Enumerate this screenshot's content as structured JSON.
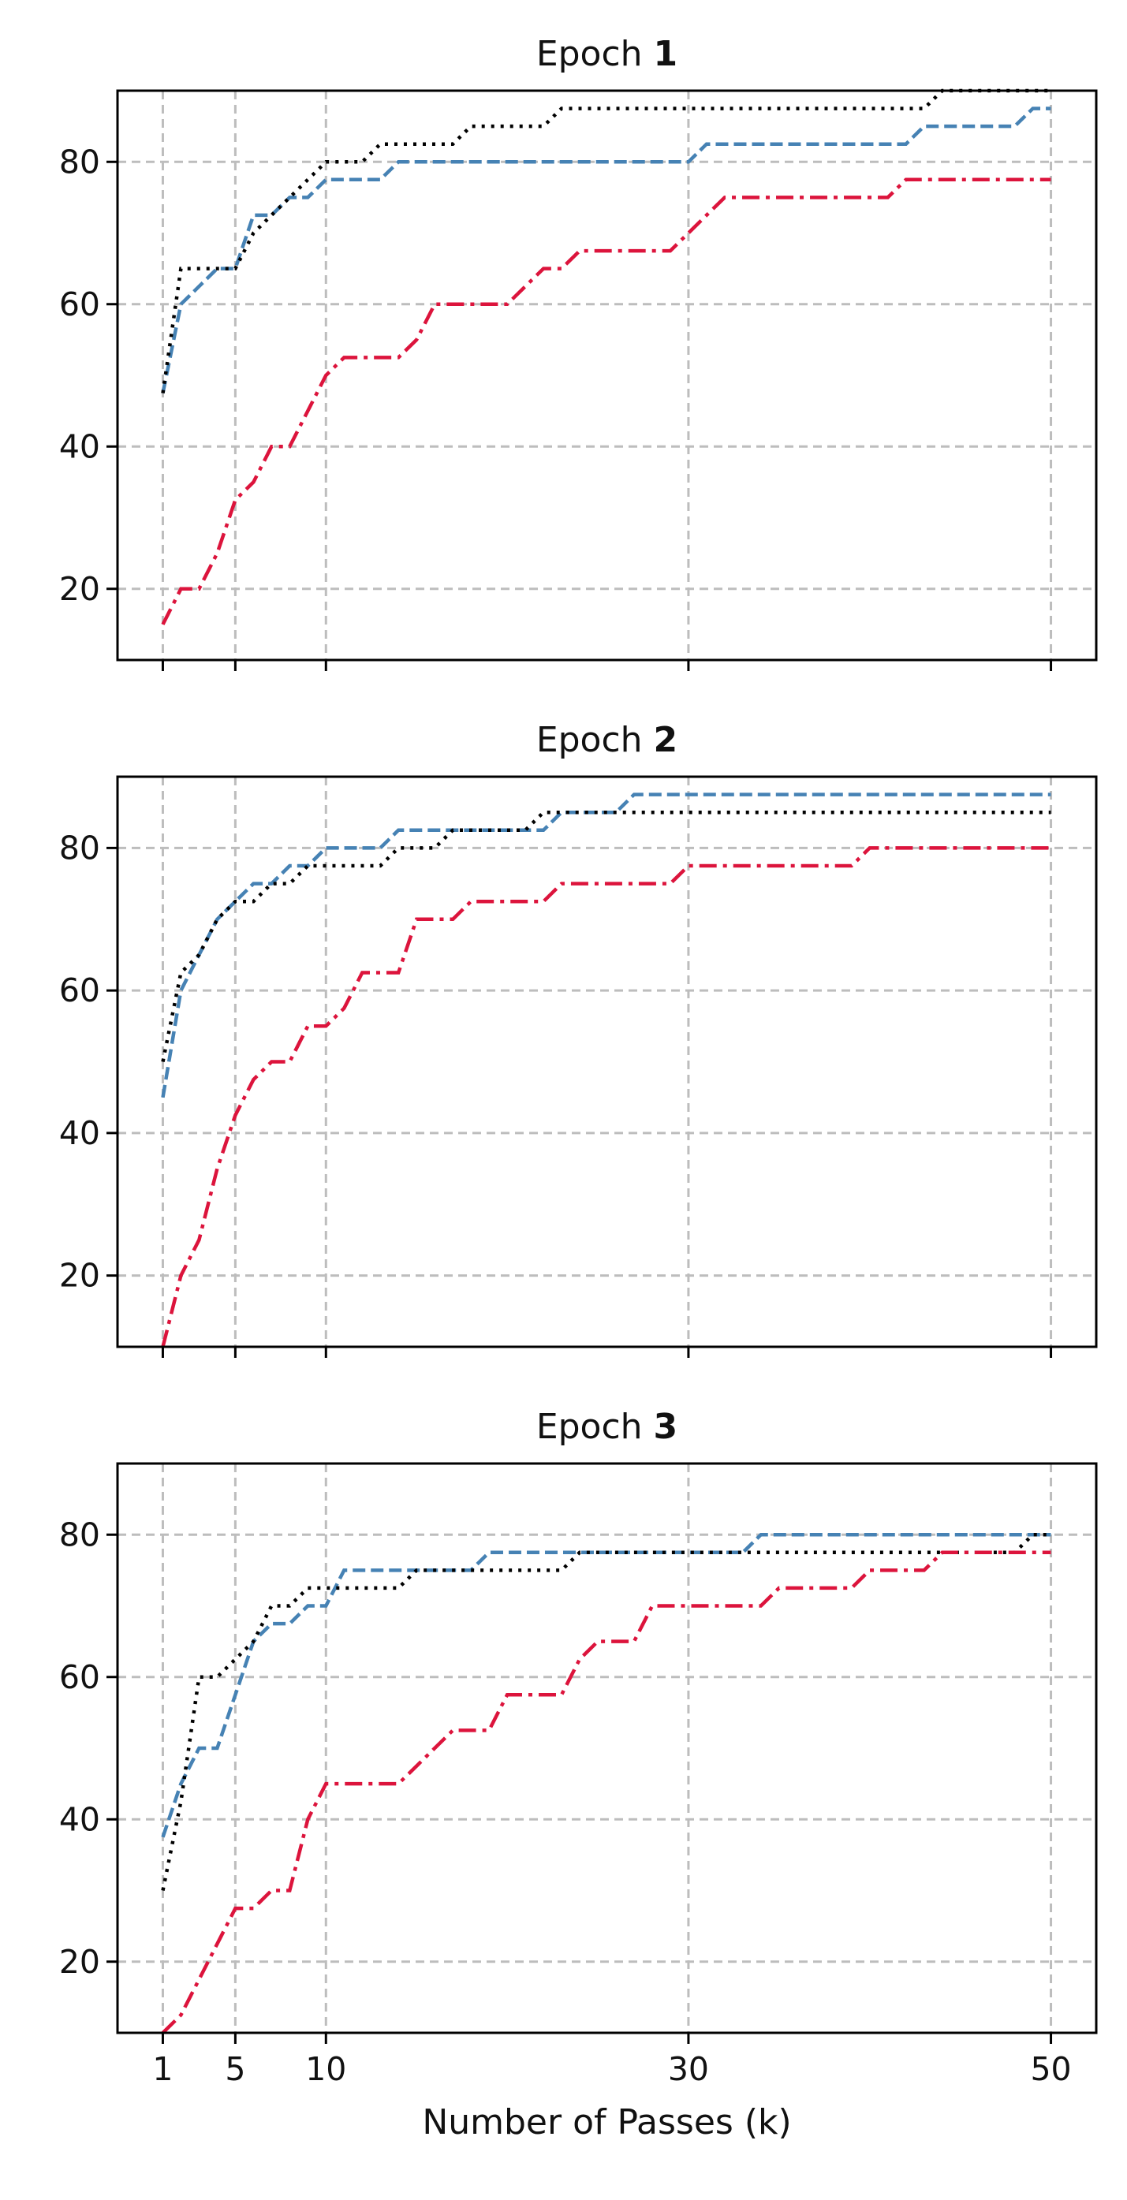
{
  "chart_data": [
    {
      "type": "line",
      "title_prefix": "Epoch ",
      "title_number": "1",
      "xlabel": "",
      "ylabel": "",
      "xlim": [
        -1.5,
        52.5
      ],
      "ylim": [
        10,
        90
      ],
      "xticks": [
        1,
        5,
        10,
        30,
        50
      ],
      "show_xtick_labels": false,
      "yticks": [
        20,
        40,
        60,
        80
      ],
      "grid": true,
      "series": [
        {
          "color": "#4682b4",
          "linestyle": "dashed",
          "x": [
            1,
            2,
            3,
            4,
            5,
            6,
            7,
            8,
            9,
            10,
            11,
            12,
            13,
            14,
            15,
            20,
            25,
            29,
            30,
            31,
            35,
            40,
            41,
            42,
            43,
            44,
            45,
            46,
            47,
            48,
            49,
            50
          ],
          "y": [
            47.5,
            60,
            62.5,
            65,
            65,
            72.5,
            72.5,
            75,
            75,
            77.5,
            77.5,
            77.5,
            77.5,
            80,
            80,
            80,
            80,
            80,
            80,
            82.5,
            82.5,
            82.5,
            82.5,
            82.5,
            85,
            85,
            85,
            85,
            85,
            85,
            87.5,
            87.5
          ]
        },
        {
          "color": "#000000",
          "linestyle": "dotted",
          "x": [
            1,
            2,
            3,
            4,
            5,
            6,
            7,
            8,
            9,
            10,
            11,
            12,
            13,
            14,
            15,
            16,
            17,
            18,
            19,
            20,
            21,
            22,
            23,
            24,
            30,
            40,
            41,
            42,
            43,
            44,
            45,
            50
          ],
          "y": [
            47.5,
            65,
            65,
            65,
            65,
            70,
            72.5,
            75,
            77.5,
            80,
            80,
            80,
            82.5,
            82.5,
            82.5,
            82.5,
            82.5,
            85,
            85,
            85,
            85,
            85,
            87.5,
            87.5,
            87.5,
            87.5,
            87.5,
            87.5,
            87.5,
            90,
            90,
            90
          ]
        },
        {
          "color": "#dc143c",
          "linestyle": "dashdot",
          "x": [
            1,
            2,
            3,
            4,
            5,
            6,
            7,
            8,
            9,
            10,
            11,
            12,
            13,
            14,
            15,
            16,
            17,
            18,
            19,
            20,
            21,
            22,
            23,
            24,
            25,
            26,
            27,
            28,
            29,
            30,
            31,
            32,
            33,
            34,
            35,
            40,
            41,
            42,
            43,
            44,
            45,
            50
          ],
          "y": [
            15,
            20,
            20,
            25,
            32.5,
            35,
            40,
            40,
            45,
            50,
            52.5,
            52.5,
            52.5,
            52.5,
            55,
            60,
            60,
            60,
            60,
            60,
            62.5,
            65,
            65,
            67.5,
            67.5,
            67.5,
            67.5,
            67.5,
            67.5,
            70,
            72.5,
            75,
            75,
            75,
            75,
            75,
            75,
            77.5,
            77.5,
            77.5,
            77.5,
            77.5
          ]
        }
      ]
    },
    {
      "type": "line",
      "title_prefix": "Epoch ",
      "title_number": "2",
      "xlabel": "",
      "ylabel": "",
      "xlim": [
        -1.5,
        52.5
      ],
      "ylim": [
        10,
        90
      ],
      "xticks": [
        1,
        5,
        10,
        30,
        50
      ],
      "show_xtick_labels": false,
      "yticks": [
        20,
        40,
        60,
        80
      ],
      "grid": true,
      "series": [
        {
          "color": "#4682b4",
          "linestyle": "dashed",
          "x": [
            1,
            2,
            3,
            4,
            5,
            6,
            7,
            8,
            9,
            10,
            11,
            12,
            13,
            14,
            15,
            16,
            17,
            18,
            19,
            20,
            21,
            22,
            23,
            24,
            25,
            26,
            27,
            28,
            30,
            40,
            50
          ],
          "y": [
            45,
            60,
            65,
            70,
            72.5,
            75,
            75,
            77.5,
            77.5,
            80,
            80,
            80,
            80,
            82.5,
            82.5,
            82.5,
            82.5,
            82.5,
            82.5,
            82.5,
            82.5,
            82.5,
            85,
            85,
            85,
            85,
            87.5,
            87.5,
            87.5,
            87.5,
            87.5
          ]
        },
        {
          "color": "#000000",
          "linestyle": "dotted",
          "x": [
            1,
            2,
            3,
            4,
            5,
            6,
            7,
            8,
            9,
            10,
            11,
            12,
            13,
            14,
            15,
            16,
            17,
            18,
            19,
            20,
            21,
            22,
            23,
            24,
            30,
            40,
            50
          ],
          "y": [
            50,
            62.5,
            65,
            70,
            72.5,
            72.5,
            75,
            75,
            77.5,
            77.5,
            77.5,
            77.5,
            77.5,
            80,
            80,
            80,
            82.5,
            82.5,
            82.5,
            82.5,
            82.5,
            85,
            85,
            85,
            85,
            85,
            85
          ]
        },
        {
          "color": "#dc143c",
          "linestyle": "dashdot",
          "x": [
            1,
            2,
            3,
            4,
            5,
            6,
            7,
            8,
            9,
            10,
            11,
            12,
            13,
            14,
            15,
            16,
            17,
            18,
            19,
            20,
            21,
            22,
            23,
            24,
            25,
            26,
            27,
            28,
            29,
            30,
            31,
            32,
            33,
            34,
            35,
            36,
            37,
            38,
            39,
            40,
            41,
            42,
            43,
            44,
            45,
            50
          ],
          "y": [
            10,
            20,
            25,
            35,
            42.5,
            47.5,
            50,
            50,
            55,
            55,
            57.5,
            62.5,
            62.5,
            62.5,
            70,
            70,
            70,
            72.5,
            72.5,
            72.5,
            72.5,
            72.5,
            75,
            75,
            75,
            75,
            75,
            75,
            75,
            77.5,
            77.5,
            77.5,
            77.5,
            77.5,
            77.5,
            77.5,
            77.5,
            77.5,
            77.5,
            80,
            80,
            80,
            80,
            80,
            80,
            80
          ]
        }
      ]
    },
    {
      "type": "line",
      "title_prefix": "Epoch ",
      "title_number": "3",
      "xlabel": "Number of Passes (k)",
      "ylabel": "",
      "xlim": [
        -1.5,
        52.5
      ],
      "ylim": [
        10,
        90
      ],
      "xticks": [
        1,
        5,
        10,
        30,
        50
      ],
      "show_xtick_labels": true,
      "yticks": [
        20,
        40,
        60,
        80
      ],
      "grid": true,
      "series": [
        {
          "color": "#4682b4",
          "linestyle": "dashed",
          "x": [
            1,
            2,
            3,
            4,
            5,
            6,
            7,
            8,
            9,
            10,
            11,
            12,
            13,
            14,
            15,
            16,
            17,
            18,
            19,
            20,
            21,
            22,
            23,
            24,
            25,
            30,
            33,
            34,
            35,
            40,
            45,
            50
          ],
          "y": [
            37.5,
            45,
            50,
            50,
            57.5,
            65,
            67.5,
            67.5,
            70,
            70,
            75,
            75,
            75,
            75,
            75,
            75,
            75,
            75,
            77.5,
            77.5,
            77.5,
            77.5,
            77.5,
            77.5,
            77.5,
            77.5,
            77.5,
            80,
            80,
            80,
            80,
            80
          ]
        },
        {
          "color": "#000000",
          "linestyle": "dotted",
          "x": [
            1,
            2,
            3,
            4,
            5,
            6,
            7,
            8,
            9,
            10,
            11,
            12,
            13,
            14,
            15,
            20,
            23,
            24,
            30,
            40,
            45,
            48,
            49,
            50
          ],
          "y": [
            30,
            42.5,
            60,
            60,
            62.5,
            65,
            70,
            70,
            72.5,
            72.5,
            72.5,
            72.5,
            72.5,
            72.5,
            75,
            75,
            75,
            77.5,
            77.5,
            77.5,
            77.5,
            77.5,
            80,
            80
          ]
        },
        {
          "color": "#dc143c",
          "linestyle": "dashdot",
          "x": [
            1,
            2,
            3,
            4,
            5,
            6,
            7,
            8,
            9,
            10,
            11,
            12,
            13,
            14,
            15,
            16,
            17,
            18,
            19,
            20,
            21,
            22,
            23,
            24,
            25,
            26,
            27,
            28,
            29,
            30,
            31,
            32,
            33,
            34,
            35,
            36,
            37,
            38,
            39,
            40,
            41,
            42,
            43,
            44,
            45,
            50
          ],
          "y": [
            10,
            12.5,
            17.5,
            22.5,
            27.5,
            27.5,
            30,
            30,
            40,
            45,
            45,
            45,
            45,
            45,
            47.5,
            50,
            52.5,
            52.5,
            52.5,
            57.5,
            57.5,
            57.5,
            57.5,
            62.5,
            65,
            65,
            65,
            70,
            70,
            70,
            70,
            70,
            70,
            70,
            72.5,
            72.5,
            72.5,
            72.5,
            72.5,
            75,
            75,
            75,
            75,
            77.5,
            77.5,
            77.5
          ]
        }
      ]
    }
  ]
}
